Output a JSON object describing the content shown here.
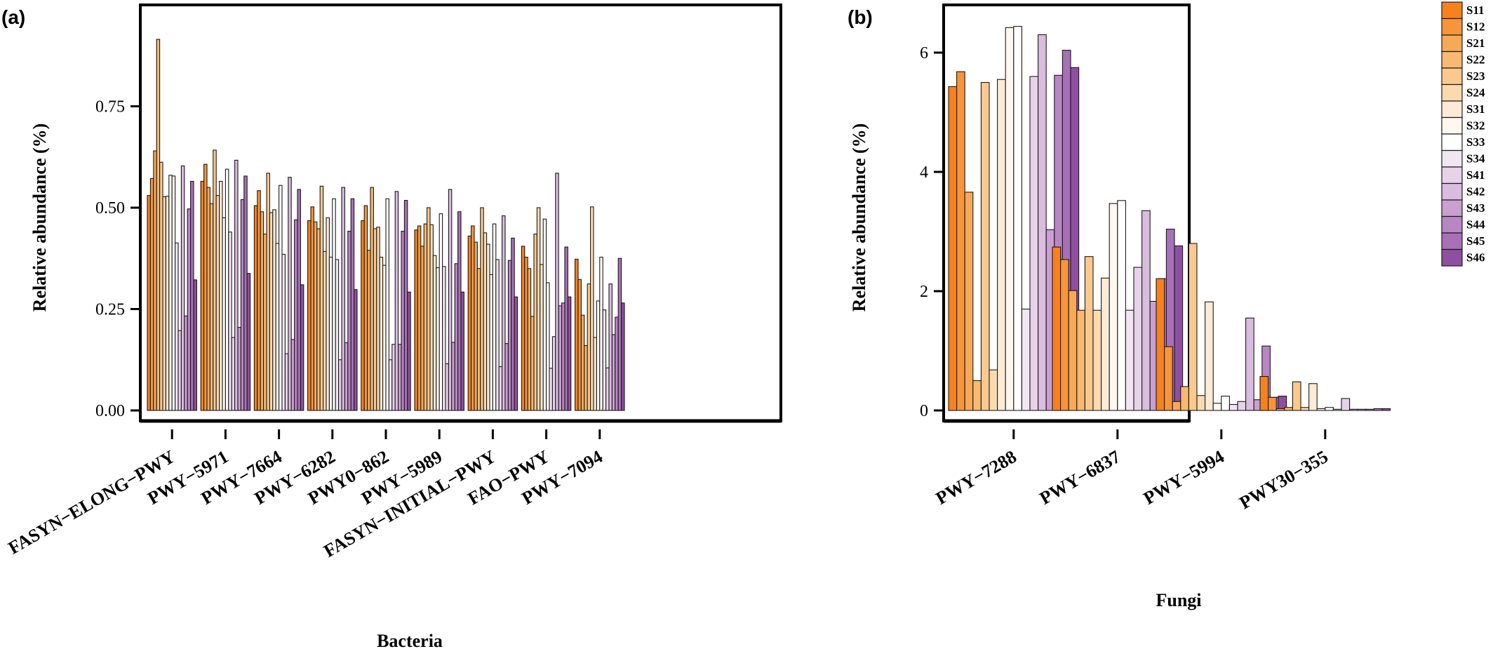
{
  "legend": {
    "labels": [
      "S11",
      "S12",
      "S21",
      "S22",
      "S23",
      "S24",
      "S31",
      "S32",
      "S33",
      "S34",
      "S41",
      "S42",
      "S43",
      "S44",
      "S45",
      "S46"
    ],
    "colors": [
      "#F5821F",
      "#F7953A",
      "#F7A95A",
      "#F8B970",
      "#FAC98D",
      "#FCDAB0",
      "#FDEBD5",
      "#FFF8F0",
      "#FFFFFF",
      "#F1E6F2",
      "#E6D2E9",
      "#D9BCDE",
      "#C9A0D0",
      "#B986C4",
      "#A871B7",
      "#8F4FA0"
    ]
  },
  "chart_data": [
    {
      "type": "bar",
      "panel_label": "(a)",
      "xlabel": "Bacteria",
      "ylabel": "Relative abundance (%)",
      "ylim": [
        0,
        1.0
      ],
      "yticks": [
        "0.00",
        "0.25",
        "0.50",
        "0.75"
      ],
      "categories": [
        "FASYN−ELONG−PWY",
        "PWY−5971",
        "PWY−7664",
        "PWY−6282",
        "PWY0−862",
        "PWY−5989",
        "FASYN−INITIAL−PWY",
        "FAO−PWY",
        "PWY−7094"
      ],
      "series": [
        {
          "name": "S11",
          "values": [
            0.53,
            0.565,
            0.505,
            0.468,
            0.468,
            0.445,
            0.43,
            0.405,
            0.373
          ]
        },
        {
          "name": "S12",
          "values": [
            0.572,
            0.607,
            0.542,
            0.502,
            0.505,
            0.455,
            0.455,
            0.378,
            0.323
          ]
        },
        {
          "name": "S21",
          "values": [
            0.64,
            0.55,
            0.49,
            0.465,
            0.395,
            0.405,
            0.415,
            0.35,
            0.235
          ]
        },
        {
          "name": "S22",
          "values": [
            0.915,
            0.51,
            0.435,
            0.448,
            0.55,
            0.46,
            0.35,
            0.232,
            0.16
          ]
        },
        {
          "name": "S23",
          "values": [
            0.612,
            0.642,
            0.585,
            0.553,
            0.448,
            0.5,
            0.5,
            0.435,
            0.312
          ]
        },
        {
          "name": "S24",
          "values": [
            0.527,
            0.53,
            0.488,
            0.392,
            0.452,
            0.458,
            0.438,
            0.5,
            0.502
          ]
        },
        {
          "name": "S31",
          "values": [
            0.528,
            0.565,
            0.495,
            0.475,
            0.378,
            0.382,
            0.41,
            0.36,
            0.18
          ]
        },
        {
          "name": "S32",
          "values": [
            0.58,
            0.475,
            0.412,
            0.378,
            0.358,
            0.352,
            0.335,
            0.472,
            0.27
          ]
        },
        {
          "name": "S33",
          "values": [
            0.578,
            0.595,
            0.555,
            0.522,
            0.522,
            0.485,
            0.46,
            0.315,
            0.378
          ]
        },
        {
          "name": "S34",
          "values": [
            0.413,
            0.44,
            0.385,
            0.372,
            0.125,
            0.355,
            0.372,
            0.104,
            0.248
          ]
        },
        {
          "name": "S41",
          "values": [
            0.197,
            0.18,
            0.14,
            0.125,
            0.163,
            0.115,
            0.108,
            0.182,
            0.105
          ]
        },
        {
          "name": "S42",
          "values": [
            0.603,
            0.617,
            0.575,
            0.55,
            0.54,
            0.545,
            0.48,
            0.585,
            0.312
          ]
        },
        {
          "name": "S43",
          "values": [
            0.233,
            0.205,
            0.175,
            0.167,
            0.163,
            0.168,
            0.165,
            0.258,
            0.187
          ]
        },
        {
          "name": "S44",
          "values": [
            0.497,
            0.52,
            0.47,
            0.442,
            0.442,
            0.362,
            0.37,
            0.265,
            0.23
          ]
        },
        {
          "name": "S45",
          "values": [
            0.565,
            0.578,
            0.545,
            0.522,
            0.518,
            0.49,
            0.425,
            0.403,
            0.375
          ]
        },
        {
          "name": "S46",
          "values": [
            0.322,
            0.338,
            0.31,
            0.298,
            0.292,
            0.292,
            0.28,
            0.28,
            0.265
          ]
        }
      ]
    },
    {
      "type": "bar",
      "panel_label": "(b)",
      "xlabel": "Fungi",
      "ylabel": "Relative abundance (%)",
      "ylim": [
        0,
        6.8
      ],
      "yticks": [
        "0",
        "2",
        "4",
        "6"
      ],
      "categories": [
        "PWY−7288",
        "PWY−6837",
        "PWY−5994",
        "PWY30−355"
      ],
      "series": [
        {
          "name": "S11",
          "values": [
            5.43,
            2.74,
            2.21,
            0.57
          ]
        },
        {
          "name": "S12",
          "values": [
            5.68,
            2.53,
            1.07,
            0.22
          ]
        },
        {
          "name": "S21",
          "values": [
            3.66,
            2.01,
            0.15,
            0.03
          ]
        },
        {
          "name": "S22",
          "values": [
            0.5,
            1.68,
            0.4,
            0.05
          ]
        },
        {
          "name": "S23",
          "values": [
            5.5,
            2.58,
            2.8,
            0.48
          ]
        },
        {
          "name": "S24",
          "values": [
            0.68,
            1.68,
            0.25,
            0.05
          ]
        },
        {
          "name": "S31",
          "values": [
            5.55,
            2.22,
            1.82,
            0.45
          ]
        },
        {
          "name": "S32",
          "values": [
            6.42,
            3.47,
            0.12,
            0.03
          ]
        },
        {
          "name": "S33",
          "values": [
            6.44,
            3.52,
            0.24,
            0.05
          ]
        },
        {
          "name": "S34",
          "values": [
            1.7,
            1.68,
            0.1,
            0.02
          ]
        },
        {
          "name": "S41",
          "values": [
            5.6,
            2.4,
            0.15,
            0.2
          ]
        },
        {
          "name": "S42",
          "values": [
            6.3,
            3.35,
            1.55,
            0.02
          ]
        },
        {
          "name": "S43",
          "values": [
            3.03,
            1.83,
            0.18,
            0.02
          ]
        },
        {
          "name": "S44",
          "values": [
            5.62,
            2.21,
            1.08,
            0.02
          ]
        },
        {
          "name": "S45",
          "values": [
            6.04,
            3.04,
            0.22,
            0.03
          ]
        },
        {
          "name": "S46",
          "values": [
            5.75,
            2.76,
            0.24,
            0.03
          ]
        }
      ]
    }
  ]
}
